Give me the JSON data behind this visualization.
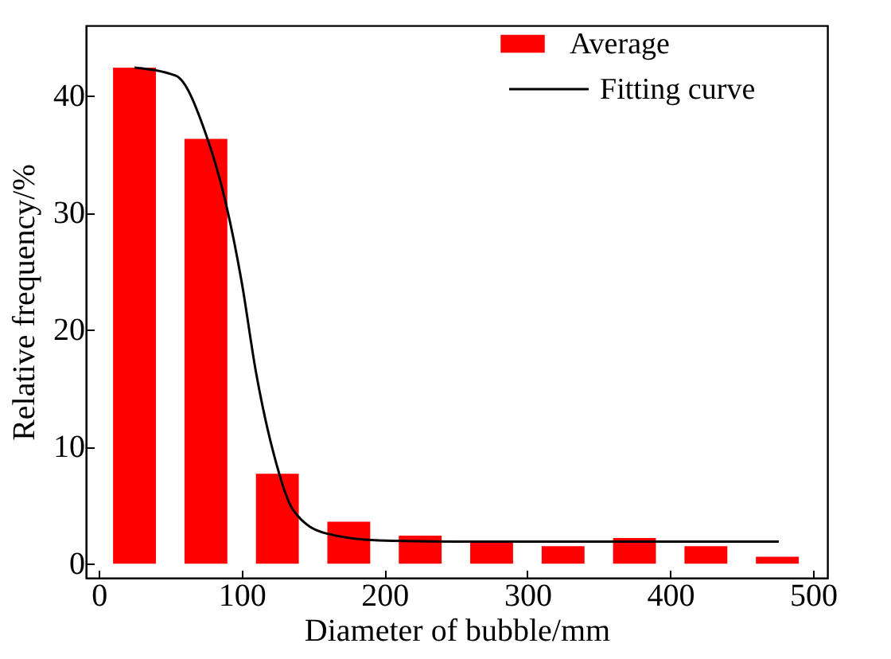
{
  "chart_data": {
    "type": "bar",
    "xlabel": "Diameter of bubble/mm",
    "ylabel": "Relative frequency/%",
    "x": [
      25,
      75,
      125,
      175,
      225,
      275,
      325,
      375,
      425,
      475
    ],
    "series": [
      {
        "name": "Average",
        "color": "#ff0000",
        "values": [
          42.4,
          36.3,
          7.7,
          3.6,
          2.4,
          1.8,
          1.5,
          2.2,
          1.5,
          0.6
        ]
      },
      {
        "name": "Fitting curve",
        "type": "line",
        "color": "#000000",
        "x": [
          25,
          54,
          75,
          88,
          100,
          110,
          122,
          136,
          159,
          196,
          250,
          350,
          476
        ],
        "values": [
          42.4,
          41.7,
          36.7,
          31.3,
          24.1,
          16.4,
          9.6,
          4.6,
          2.6,
          2.0,
          1.9,
          1.9,
          1.9
        ]
      }
    ],
    "xlim": [
      -9,
      510
    ],
    "ylim": [
      -1.2,
      46
    ],
    "xticks": [
      0,
      100,
      200,
      300,
      400,
      500
    ],
    "yticks": [
      0,
      10,
      20,
      30,
      40
    ],
    "grid": false,
    "legend": "top right",
    "marker": "none",
    "line_style": "solid"
  }
}
